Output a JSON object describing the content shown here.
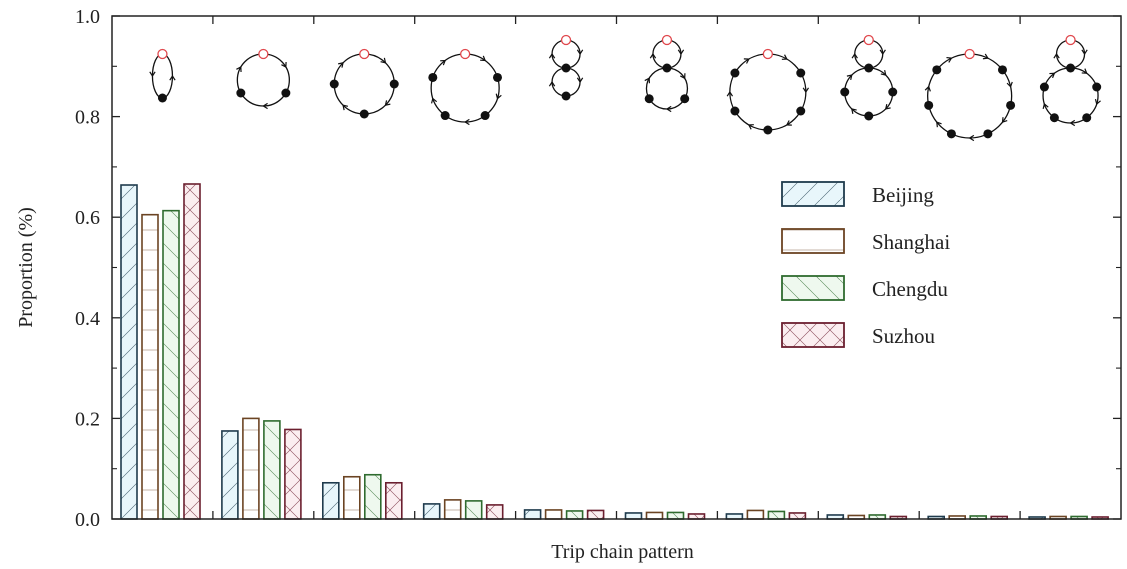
{
  "chart_data": {
    "type": "bar",
    "xlabel": "Trip chain pattern",
    "ylabel": "Proportion (%)",
    "ylim": [
      0,
      1.0
    ],
    "yticks": [
      "0.0",
      "0.2",
      "0.4",
      "0.6",
      "0.8",
      "1.0"
    ],
    "legend_position": "right",
    "categories": [
      "pattern-1",
      "pattern-2",
      "pattern-3",
      "pattern-4",
      "pattern-5",
      "pattern-6",
      "pattern-7",
      "pattern-8",
      "pattern-9",
      "pattern-10"
    ],
    "series": [
      {
        "name": "Beijing",
        "values": [
          0.664,
          0.175,
          0.072,
          0.03,
          0.018,
          0.012,
          0.01,
          0.008,
          0.005,
          0.004
        ],
        "edge": "#1f3b4d",
        "fill": "#e8f6fb",
        "hatch": "diag"
      },
      {
        "name": "Shanghai",
        "values": [
          0.605,
          0.2,
          0.084,
          0.038,
          0.018,
          0.013,
          0.017,
          0.007,
          0.006,
          0.005
        ],
        "edge": "#6b4423",
        "fill": "#ffffff",
        "hatch": "grid"
      },
      {
        "name": "Chengdu",
        "values": [
          0.613,
          0.195,
          0.088,
          0.036,
          0.016,
          0.013,
          0.015,
          0.008,
          0.006,
          0.005
        ],
        "edge": "#2f6b2f",
        "fill": "#eef8ee",
        "hatch": "antidiag"
      },
      {
        "name": "Suzhou",
        "values": [
          0.666,
          0.178,
          0.072,
          0.028,
          0.017,
          0.01,
          0.012,
          0.005,
          0.005,
          0.004
        ],
        "edge": "#6b1f2f",
        "fill": "#fbeef0",
        "hatch": "cross"
      }
    ],
    "pattern_icons": [
      {
        "loops": [
          2
        ]
      },
      {
        "loops": [
          3
        ]
      },
      {
        "loops": [
          4
        ]
      },
      {
        "loops": [
          5
        ]
      },
      {
        "loops": [
          2,
          2
        ]
      },
      {
        "loops": [
          2,
          3
        ]
      },
      {
        "loops": [
          6
        ]
      },
      {
        "loops": [
          2,
          4
        ]
      },
      {
        "loops": [
          7
        ]
      },
      {
        "loops": [
          2,
          5
        ]
      }
    ]
  }
}
